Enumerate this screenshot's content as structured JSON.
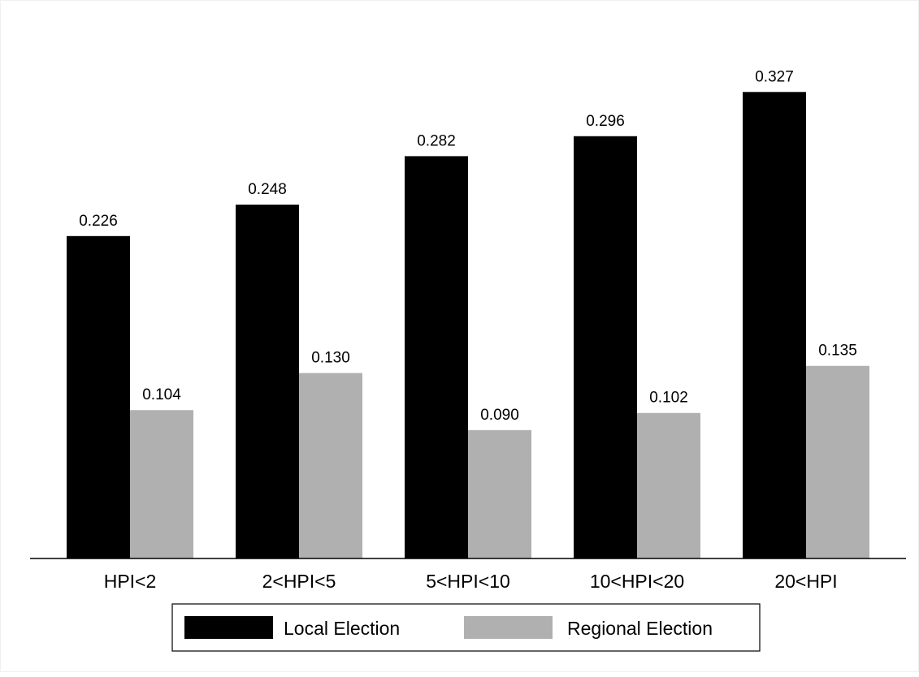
{
  "chart_data": {
    "type": "bar",
    "categories": [
      "HPI<2",
      "2<HPI<5",
      "5<HPI<10",
      "10<HPI<20",
      "20<HPI"
    ],
    "series": [
      {
        "name": "Local Election",
        "values": [
          0.226,
          0.248,
          0.282,
          0.296,
          0.327
        ],
        "labels": [
          "0.226",
          "0.248",
          "0.282",
          "0.296",
          "0.327"
        ],
        "color": "#000000"
      },
      {
        "name": "Regional Election",
        "values": [
          0.104,
          0.13,
          0.09,
          0.102,
          0.135
        ],
        "labels": [
          "0.104",
          "0.130",
          "0.090",
          "0.102",
          "0.135"
        ],
        "color": "#b0b0b0"
      }
    ],
    "ylim": [
      0,
      0.334
    ],
    "grid": false,
    "legend_position": "bottom"
  }
}
